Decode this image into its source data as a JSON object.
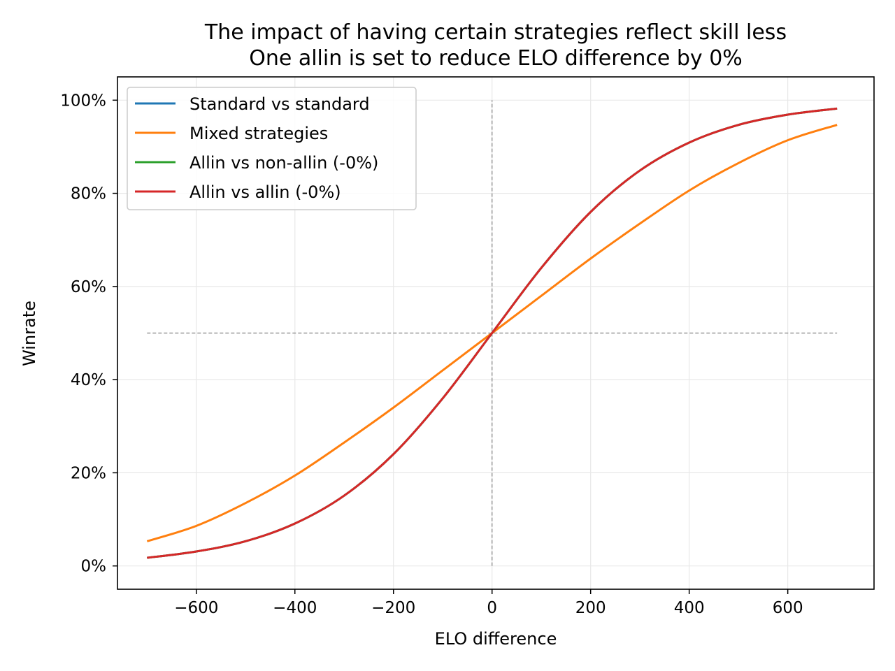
{
  "chart_data": {
    "type": "line",
    "title": [
      "The impact of having certain strategies reflect skill less",
      "One allin is set to reduce ELO difference by 0%"
    ],
    "xlabel": "ELO difference",
    "ylabel": "Winrate",
    "xlim": [
      -760,
      775
    ],
    "ylim": [
      -5,
      105
    ],
    "xticks": [
      -600,
      -400,
      -200,
      0,
      200,
      400,
      600
    ],
    "xtick_labels": [
      "−600",
      "−400",
      "−200",
      "0",
      "200",
      "400",
      "600"
    ],
    "yticks": [
      0,
      20,
      40,
      60,
      80,
      100
    ],
    "ytick_labels": [
      "0%",
      "20%",
      "40%",
      "60%",
      "80%",
      "100%"
    ],
    "grid": true,
    "legend_position": "top-left",
    "reference_lines": [
      {
        "orientation": "horizontal",
        "y": 50,
        "x_from": -700,
        "x_to": 700
      },
      {
        "orientation": "vertical",
        "x": 0,
        "y_from": 0,
        "y_to": 100
      }
    ],
    "series": [
      {
        "name": "Standard vs standard",
        "color": "#1f77b4",
        "x": [
          -700,
          -600,
          -500,
          -400,
          -300,
          -200,
          -100,
          0,
          100,
          200,
          300,
          400,
          500,
          600,
          700
        ],
        "y": [
          1.75,
          3.1,
          5.3,
          9.1,
          15.1,
          24.0,
          36.0,
          50.0,
          64.0,
          76.0,
          84.9,
          90.9,
          94.7,
          96.9,
          98.2
        ]
      },
      {
        "name": "Mixed strategies",
        "color": "#ff7f0e",
        "x": [
          -700,
          -600,
          -500,
          -400,
          -300,
          -200,
          -100,
          0,
          100,
          200,
          300,
          400,
          500,
          600,
          700
        ],
        "y": [
          5.3,
          8.6,
          13.5,
          19.4,
          26.5,
          34.0,
          42.0,
          50.0,
          58.0,
          66.0,
          73.5,
          80.6,
          86.5,
          91.4,
          94.7
        ]
      },
      {
        "name": "Allin vs non-allin (-0%)",
        "color": "#2ca02c",
        "x": [
          -700,
          -600,
          -500,
          -400,
          -300,
          -200,
          -100,
          0,
          100,
          200,
          300,
          400,
          500,
          600,
          700
        ],
        "y": [
          1.75,
          3.1,
          5.3,
          9.1,
          15.1,
          24.0,
          36.0,
          50.0,
          64.0,
          76.0,
          84.9,
          90.9,
          94.7,
          96.9,
          98.2
        ]
      },
      {
        "name": "Allin vs allin (-0%)",
        "color": "#d62728",
        "x": [
          -700,
          -600,
          -500,
          -400,
          -300,
          -200,
          -100,
          0,
          100,
          200,
          300,
          400,
          500,
          600,
          700
        ],
        "y": [
          1.75,
          3.1,
          5.3,
          9.1,
          15.1,
          24.0,
          36.0,
          50.0,
          64.0,
          76.0,
          84.9,
          90.9,
          94.7,
          96.9,
          98.2
        ]
      }
    ]
  }
}
